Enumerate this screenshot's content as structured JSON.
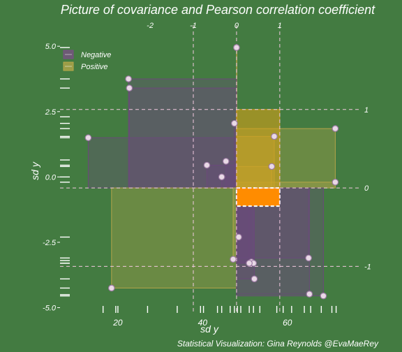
{
  "chart_data": {
    "type": "scatter",
    "title": "Picture of covariance and Pearson correlation coefficient",
    "caption": "Statistical Visualization: Gina Reynolds @EvaMaeRey",
    "xlabel": "sd y",
    "ylabel": "sd y",
    "colors": {
      "background": "#437b41",
      "negative": "#6b4a7a",
      "positive": "#b5a54a",
      "mean_box": "#ff8c00",
      "guide": "#f2c9e0",
      "text": "#ffffff"
    },
    "legend": {
      "position": "top-left",
      "entries": [
        {
          "label": "Negative",
          "color": "#7a4f86"
        },
        {
          "label": "Positive",
          "color": "#b8a84a"
        }
      ]
    },
    "xlim": [
      7,
      77
    ],
    "ylim": [
      -5.2,
      5.7
    ],
    "x_ticks_bottom": [
      "20",
      "40",
      "60"
    ],
    "y_ticks_left": [
      "-5.0",
      "-2.5",
      "0.0",
      "2.5",
      "5.0"
    ],
    "x_ticks_top": [
      "-2",
      "-1",
      "0",
      "1"
    ],
    "y_ticks_right": [
      "-1",
      "0",
      "1"
    ],
    "mean": {
      "x": 48,
      "y": -0.42
    },
    "sd": {
      "x": 10.2,
      "y": 3.0
    },
    "points": [
      {
        "x": 48.0,
        "y": 4.95
      },
      {
        "x": 22.5,
        "y": 3.75
      },
      {
        "x": 22.7,
        "y": 3.4
      },
      {
        "x": 47.5,
        "y": 2.05
      },
      {
        "x": 56.9,
        "y": 1.55
      },
      {
        "x": 71.3,
        "y": 1.85
      },
      {
        "x": 13.0,
        "y": 1.5
      },
      {
        "x": 45.5,
        "y": 0.6
      },
      {
        "x": 41.0,
        "y": 0.45
      },
      {
        "x": 56.3,
        "y": 0.4
      },
      {
        "x": 44.5,
        "y": 0.0
      },
      {
        "x": 71.3,
        "y": -0.2
      },
      {
        "x": 48.5,
        "y": -2.3
      },
      {
        "x": 47.2,
        "y": -3.15
      },
      {
        "x": 51.5,
        "y": -3.25
      },
      {
        "x": 65.0,
        "y": -3.1
      },
      {
        "x": 52.0,
        "y": -3.3
      },
      {
        "x": 51.0,
        "y": -3.3
      },
      {
        "x": 52.2,
        "y": -3.9
      },
      {
        "x": 18.5,
        "y": -4.25
      },
      {
        "x": 65.2,
        "y": -4.48
      },
      {
        "x": 68.5,
        "y": -4.55
      }
    ],
    "rug_x": [
      16.5,
      19.5,
      20.0,
      27.0,
      34.0,
      39.5,
      40.2,
      43.5,
      44.5,
      46.5,
      47.5,
      48.2,
      49.0,
      51.0,
      52.0,
      53.5,
      57.5,
      59.0,
      61.0,
      64.0,
      65.5,
      68.0,
      70.5,
      71.5
    ],
    "rug_y": [
      4.95,
      3.75,
      3.4,
      2.3,
      2.05,
      1.85,
      1.55,
      1.5,
      0.65,
      0.45,
      0.4,
      0.0,
      -0.2,
      -2.3,
      -3.1,
      -3.2,
      -3.3,
      -3.3,
      -3.9,
      -4.25,
      -4.5,
      -4.55
    ]
  }
}
